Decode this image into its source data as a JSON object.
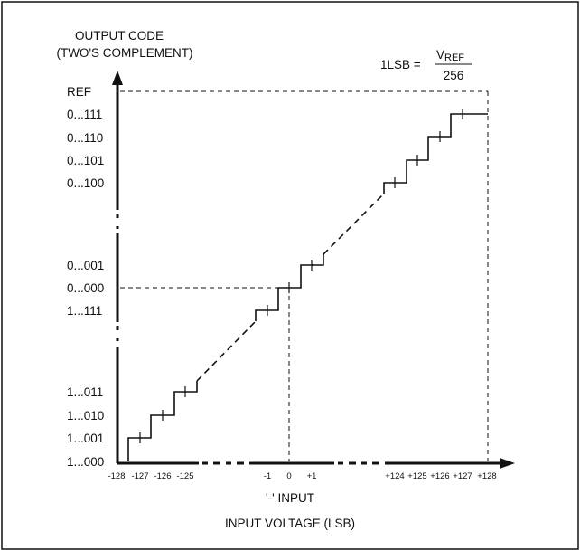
{
  "y_axis": {
    "title_line1": "OUTPUT CODE",
    "title_line2": "(TWO'S COMPLEMENT)",
    "labels": [
      "REF",
      "0...111",
      "0...110",
      "0...101",
      "0...100",
      "0...001",
      "0...000",
      "1...111",
      "1...011",
      "1...010",
      "1...001",
      "1...000"
    ]
  },
  "x_axis": {
    "labels": [
      "-128",
      "-127",
      "-126",
      "-125",
      "-1",
      "0",
      "+1",
      "+124",
      "+125",
      "+126",
      "+127",
      "+128"
    ],
    "input_label": "'-' INPUT",
    "title": "INPUT VOLTAGE (LSB)"
  },
  "formula": {
    "lhs": "1LSB =",
    "num_main": "V",
    "num_sub": "REF",
    "den": "256"
  },
  "colors": {
    "line": "#111111",
    "background": "#ffffff"
  }
}
